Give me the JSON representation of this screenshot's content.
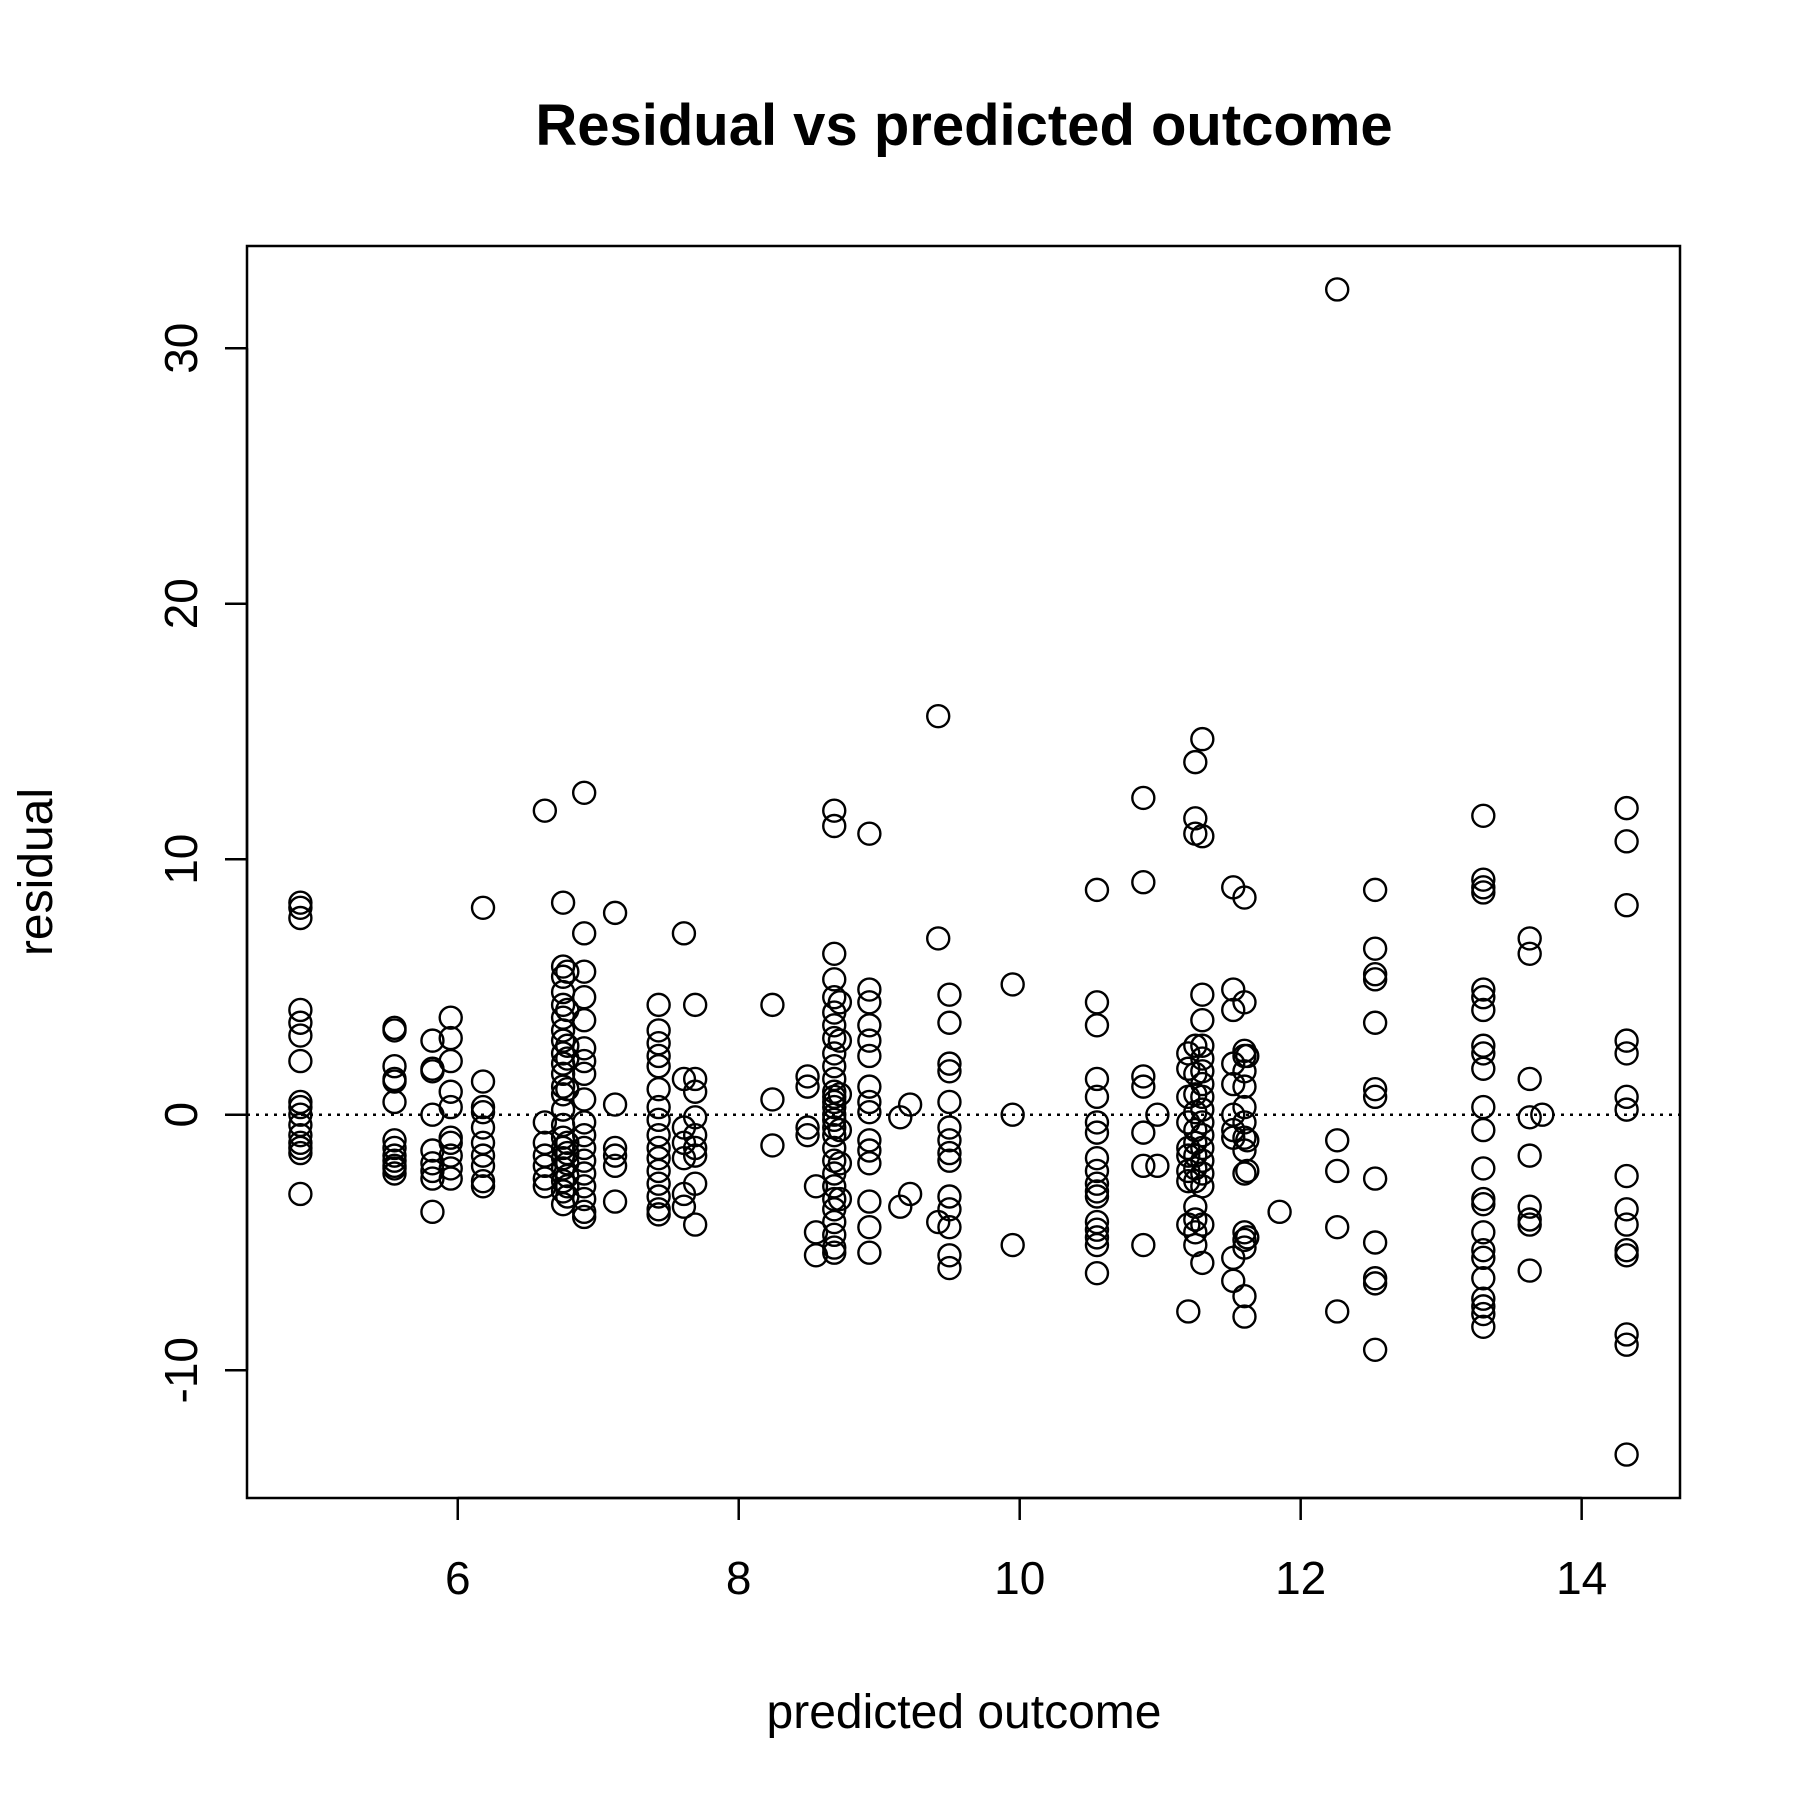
{
  "chart_data": {
    "type": "scatter",
    "title": "Residual vs predicted outcome",
    "xlabel": "predicted outcome",
    "ylabel": "residual",
    "xlim": [
      4.5,
      14.7
    ],
    "ylim": [
      -15,
      34
    ],
    "xticks": [
      6,
      8,
      10,
      12,
      14
    ],
    "xtick_labels": [
      "6",
      "8",
      "10",
      "12",
      "14"
    ],
    "yticks": [
      -10,
      0,
      10,
      20,
      30
    ],
    "ytick_labels": [
      "-10",
      "0",
      "10",
      "20",
      "30"
    ],
    "reference_line_y": 0,
    "grid": false,
    "marker": "open-circle",
    "points": [
      [
        4.88,
        8.3
      ],
      [
        4.88,
        8.1
      ],
      [
        4.88,
        7.7
      ],
      [
        4.88,
        4.1
      ],
      [
        4.88,
        3.6
      ],
      [
        4.88,
        3.1
      ],
      [
        4.88,
        2.1
      ],
      [
        4.88,
        0.5
      ],
      [
        4.88,
        0.3
      ],
      [
        4.88,
        0.0
      ],
      [
        4.88,
        -0.4
      ],
      [
        4.88,
        -0.8
      ],
      [
        4.88,
        -1.1
      ],
      [
        4.88,
        -1.3
      ],
      [
        4.88,
        -1.5
      ],
      [
        4.88,
        -3.1
      ],
      [
        5.55,
        3.4
      ],
      [
        5.55,
        3.3
      ],
      [
        5.55,
        1.9
      ],
      [
        5.55,
        1.4
      ],
      [
        5.55,
        1.3
      ],
      [
        5.55,
        0.5
      ],
      [
        5.55,
        -1.0
      ],
      [
        5.55,
        -1.3
      ],
      [
        5.55,
        -1.6
      ],
      [
        5.55,
        -1.8
      ],
      [
        5.55,
        -2.0
      ],
      [
        5.55,
        -2.1
      ],
      [
        5.55,
        -2.3
      ],
      [
        5.82,
        2.9
      ],
      [
        5.82,
        1.8
      ],
      [
        5.82,
        1.7
      ],
      [
        5.82,
        0.0
      ],
      [
        5.82,
        -1.4
      ],
      [
        5.82,
        -1.9
      ],
      [
        5.82,
        -2.2
      ],
      [
        5.82,
        -2.5
      ],
      [
        5.82,
        -3.8
      ],
      [
        5.95,
        3.8
      ],
      [
        5.95,
        3.0
      ],
      [
        5.95,
        2.1
      ],
      [
        5.95,
        0.9
      ],
      [
        5.95,
        0.3
      ],
      [
        5.95,
        -0.9
      ],
      [
        5.95,
        -1.1
      ],
      [
        5.95,
        -1.6
      ],
      [
        5.95,
        -2.1
      ],
      [
        5.95,
        -2.5
      ],
      [
        6.18,
        8.1
      ],
      [
        6.18,
        1.3
      ],
      [
        6.18,
        0.3
      ],
      [
        6.18,
        0.1
      ],
      [
        6.18,
        -0.5
      ],
      [
        6.18,
        -1.1
      ],
      [
        6.18,
        -1.6
      ],
      [
        6.18,
        -2.0
      ],
      [
        6.18,
        -2.6
      ],
      [
        6.18,
        -2.8
      ],
      [
        6.62,
        11.9
      ],
      [
        6.62,
        -0.3
      ],
      [
        6.62,
        -1.1
      ],
      [
        6.62,
        -1.6
      ],
      [
        6.62,
        -2.0
      ],
      [
        6.62,
        -2.5
      ],
      [
        6.62,
        -2.8
      ],
      [
        6.75,
        8.3
      ],
      [
        6.75,
        5.8
      ],
      [
        6.75,
        5.4
      ],
      [
        6.75,
        4.8
      ],
      [
        6.75,
        4.3
      ],
      [
        6.75,
        3.8
      ],
      [
        6.75,
        3.3
      ],
      [
        6.75,
        2.9
      ],
      [
        6.75,
        2.4
      ],
      [
        6.75,
        2.0
      ],
      [
        6.75,
        1.6
      ],
      [
        6.75,
        1.1
      ],
      [
        6.75,
        0.8
      ],
      [
        6.75,
        0.2
      ],
      [
        6.75,
        -0.4
      ],
      [
        6.75,
        -0.9
      ],
      [
        6.75,
        -1.3
      ],
      [
        6.75,
        -1.7
      ],
      [
        6.75,
        -2.1
      ],
      [
        6.75,
        -2.6
      ],
      [
        6.75,
        -3.0
      ],
      [
        6.75,
        -3.5
      ],
      [
        6.78,
        5.6
      ],
      [
        6.78,
        4.1
      ],
      [
        6.78,
        2.7
      ],
      [
        6.78,
        2.2
      ],
      [
        6.78,
        1.0
      ],
      [
        6.78,
        -1.1
      ],
      [
        6.78,
        -1.5
      ],
      [
        6.78,
        -1.9
      ],
      [
        6.78,
        -2.4
      ],
      [
        6.78,
        -2.8
      ],
      [
        6.78,
        -3.2
      ],
      [
        6.9,
        12.6
      ],
      [
        6.9,
        7.1
      ],
      [
        6.9,
        5.6
      ],
      [
        6.9,
        4.6
      ],
      [
        6.9,
        3.7
      ],
      [
        6.9,
        2.6
      ],
      [
        6.9,
        2.1
      ],
      [
        6.9,
        1.6
      ],
      [
        6.9,
        0.6
      ],
      [
        6.9,
        -0.3
      ],
      [
        6.9,
        -0.8
      ],
      [
        6.9,
        -1.3
      ],
      [
        6.9,
        -1.8
      ],
      [
        6.9,
        -2.3
      ],
      [
        6.9,
        -2.8
      ],
      [
        6.9,
        -3.3
      ],
      [
        6.9,
        -3.8
      ],
      [
        6.9,
        -4.0
      ],
      [
        7.12,
        7.9
      ],
      [
        7.12,
        0.4
      ],
      [
        7.12,
        -1.3
      ],
      [
        7.12,
        -1.6
      ],
      [
        7.12,
        -2.0
      ],
      [
        7.12,
        -3.4
      ],
      [
        7.43,
        4.3
      ],
      [
        7.43,
        3.3
      ],
      [
        7.43,
        2.8
      ],
      [
        7.43,
        2.3
      ],
      [
        7.43,
        1.9
      ],
      [
        7.43,
        1.0
      ],
      [
        7.43,
        0.3
      ],
      [
        7.43,
        -0.2
      ],
      [
        7.43,
        -0.8
      ],
      [
        7.43,
        -1.3
      ],
      [
        7.43,
        -1.7
      ],
      [
        7.43,
        -2.2
      ],
      [
        7.43,
        -2.7
      ],
      [
        7.43,
        -3.2
      ],
      [
        7.43,
        -3.7
      ],
      [
        7.43,
        -3.9
      ],
      [
        7.61,
        7.1
      ],
      [
        7.61,
        1.4
      ],
      [
        7.61,
        -0.5
      ],
      [
        7.61,
        -1.1
      ],
      [
        7.61,
        -1.7
      ],
      [
        7.61,
        -3.1
      ],
      [
        7.61,
        -3.6
      ],
      [
        7.69,
        4.3
      ],
      [
        7.69,
        1.4
      ],
      [
        7.69,
        0.9
      ],
      [
        7.69,
        -0.1
      ],
      [
        7.69,
        -0.8
      ],
      [
        7.69,
        -1.3
      ],
      [
        7.69,
        -1.6
      ],
      [
        7.69,
        -2.7
      ],
      [
        7.69,
        -4.3
      ],
      [
        8.24,
        4.3
      ],
      [
        8.24,
        0.6
      ],
      [
        8.24,
        -1.2
      ],
      [
        8.49,
        1.5
      ],
      [
        8.49,
        1.1
      ],
      [
        8.49,
        -0.5
      ],
      [
        8.49,
        -0.8
      ],
      [
        8.55,
        -2.8
      ],
      [
        8.55,
        -4.6
      ],
      [
        8.55,
        -5.5
      ],
      [
        8.68,
        11.9
      ],
      [
        8.68,
        11.3
      ],
      [
        8.68,
        6.3
      ],
      [
        8.68,
        5.3
      ],
      [
        8.68,
        4.6
      ],
      [
        8.68,
        4.0
      ],
      [
        8.68,
        3.5
      ],
      [
        8.68,
        3.0
      ],
      [
        8.68,
        2.4
      ],
      [
        8.68,
        1.9
      ],
      [
        8.68,
        1.4
      ],
      [
        8.68,
        0.9
      ],
      [
        8.68,
        0.7
      ],
      [
        8.68,
        0.5
      ],
      [
        8.68,
        0.3
      ],
      [
        8.68,
        0.0
      ],
      [
        8.68,
        -0.2
      ],
      [
        8.68,
        -0.5
      ],
      [
        8.68,
        -0.8
      ],
      [
        8.68,
        -1.3
      ],
      [
        8.68,
        -1.8
      ],
      [
        8.68,
        -2.3
      ],
      [
        8.68,
        -2.8
      ],
      [
        8.68,
        -3.3
      ],
      [
        8.68,
        -3.7
      ],
      [
        8.68,
        -4.2
      ],
      [
        8.68,
        -4.7
      ],
      [
        8.68,
        -5.2
      ],
      [
        8.68,
        -5.4
      ],
      [
        8.72,
        4.4
      ],
      [
        8.72,
        2.9
      ],
      [
        8.72,
        0.8
      ],
      [
        8.72,
        -0.6
      ],
      [
        8.72,
        -1.9
      ],
      [
        8.72,
        -3.3
      ],
      [
        8.93,
        11.0
      ],
      [
        8.93,
        4.9
      ],
      [
        8.93,
        4.4
      ],
      [
        8.93,
        3.5
      ],
      [
        8.93,
        2.9
      ],
      [
        8.93,
        2.3
      ],
      [
        8.93,
        1.1
      ],
      [
        8.93,
        0.5
      ],
      [
        8.93,
        0.1
      ],
      [
        8.93,
        -1.0
      ],
      [
        8.93,
        -1.4
      ],
      [
        8.93,
        -1.9
      ],
      [
        8.93,
        -3.4
      ],
      [
        8.93,
        -4.4
      ],
      [
        8.93,
        -5.4
      ],
      [
        9.15,
        -0.1
      ],
      [
        9.15,
        -3.6
      ],
      [
        9.22,
        0.4
      ],
      [
        9.22,
        -3.1
      ],
      [
        9.42,
        15.6
      ],
      [
        9.42,
        6.9
      ],
      [
        9.42,
        -4.2
      ],
      [
        9.5,
        4.7
      ],
      [
        9.5,
        3.6
      ],
      [
        9.5,
        2.0
      ],
      [
        9.5,
        1.7
      ],
      [
        9.5,
        0.5
      ],
      [
        9.5,
        -0.5
      ],
      [
        9.5,
        -1.0
      ],
      [
        9.5,
        -1.5
      ],
      [
        9.5,
        -1.8
      ],
      [
        9.5,
        -3.2
      ],
      [
        9.5,
        -3.7
      ],
      [
        9.5,
        -4.4
      ],
      [
        9.5,
        -5.5
      ],
      [
        9.5,
        -6.0
      ],
      [
        9.95,
        5.1
      ],
      [
        9.95,
        0.0
      ],
      [
        9.95,
        -5.1
      ],
      [
        10.55,
        8.8
      ],
      [
        10.55,
        4.4
      ],
      [
        10.55,
        3.5
      ],
      [
        10.55,
        1.4
      ],
      [
        10.55,
        0.7
      ],
      [
        10.55,
        -0.3
      ],
      [
        10.55,
        -0.7
      ],
      [
        10.55,
        -1.7
      ],
      [
        10.55,
        -2.2
      ],
      [
        10.55,
        -2.7
      ],
      [
        10.55,
        -3.0
      ],
      [
        10.55,
        -3.2
      ],
      [
        10.55,
        -4.2
      ],
      [
        10.55,
        -4.5
      ],
      [
        10.55,
        -4.8
      ],
      [
        10.55,
        -5.1
      ],
      [
        10.55,
        -6.2
      ],
      [
        10.88,
        12.4
      ],
      [
        10.88,
        9.1
      ],
      [
        10.88,
        1.5
      ],
      [
        10.88,
        1.1
      ],
      [
        10.88,
        -0.7
      ],
      [
        10.88,
        -2.0
      ],
      [
        10.88,
        -5.1
      ],
      [
        10.98,
        0.0
      ],
      [
        10.98,
        -2.0
      ],
      [
        11.2,
        2.4
      ],
      [
        11.2,
        1.8
      ],
      [
        11.2,
        0.7
      ],
      [
        11.2,
        -0.3
      ],
      [
        11.2,
        -1.3
      ],
      [
        11.2,
        -1.6
      ],
      [
        11.2,
        -2.2
      ],
      [
        11.2,
        -2.6
      ],
      [
        11.2,
        -4.3
      ],
      [
        11.2,
        -7.7
      ],
      [
        11.25,
        13.8
      ],
      [
        11.25,
        11.6
      ],
      [
        11.25,
        11.0
      ],
      [
        11.25,
        2.7
      ],
      [
        11.25,
        1.6
      ],
      [
        11.25,
        0.8
      ],
      [
        11.25,
        0.1
      ],
      [
        11.25,
        -0.6
      ],
      [
        11.25,
        -1.1
      ],
      [
        11.25,
        -1.6
      ],
      [
        11.25,
        -2.1
      ],
      [
        11.25,
        -2.6
      ],
      [
        11.25,
        -3.6
      ],
      [
        11.25,
        -4.1
      ],
      [
        11.25,
        -4.6
      ],
      [
        11.25,
        -5.1
      ],
      [
        11.3,
        14.7
      ],
      [
        11.3,
        10.9
      ],
      [
        11.3,
        4.7
      ],
      [
        11.3,
        3.7
      ],
      [
        11.3,
        2.7
      ],
      [
        11.3,
        2.2
      ],
      [
        11.3,
        1.7
      ],
      [
        11.3,
        1.2
      ],
      [
        11.3,
        0.7
      ],
      [
        11.3,
        0.2
      ],
      [
        11.3,
        -0.3
      ],
      [
        11.3,
        -0.8
      ],
      [
        11.3,
        -1.3
      ],
      [
        11.3,
        -1.8
      ],
      [
        11.3,
        -2.3
      ],
      [
        11.3,
        -2.8
      ],
      [
        11.3,
        -4.3
      ],
      [
        11.3,
        -5.8
      ],
      [
        11.52,
        8.9
      ],
      [
        11.52,
        4.9
      ],
      [
        11.52,
        4.1
      ],
      [
        11.52,
        2.0
      ],
      [
        11.52,
        1.2
      ],
      [
        11.52,
        0.0
      ],
      [
        11.52,
        -0.6
      ],
      [
        11.52,
        -0.9
      ],
      [
        11.52,
        -5.6
      ],
      [
        11.52,
        -6.5
      ],
      [
        11.6,
        8.5
      ],
      [
        11.6,
        4.4
      ],
      [
        11.6,
        2.5
      ],
      [
        11.6,
        2.3
      ],
      [
        11.6,
        1.7
      ],
      [
        11.6,
        1.1
      ],
      [
        11.6,
        0.3
      ],
      [
        11.6,
        -0.3
      ],
      [
        11.6,
        -0.9
      ],
      [
        11.6,
        -1.4
      ],
      [
        11.6,
        -2.3
      ],
      [
        11.6,
        -4.6
      ],
      [
        11.6,
        -4.9
      ],
      [
        11.6,
        -5.2
      ],
      [
        11.6,
        -7.1
      ],
      [
        11.6,
        -7.9
      ],
      [
        11.62,
        2.3
      ],
      [
        11.62,
        -1.0
      ],
      [
        11.62,
        -2.2
      ],
      [
        11.62,
        -4.8
      ],
      [
        11.85,
        -3.8
      ],
      [
        12.26,
        32.3
      ],
      [
        12.26,
        -1.0
      ],
      [
        12.26,
        -2.2
      ],
      [
        12.26,
        -4.4
      ],
      [
        12.26,
        -7.7
      ],
      [
        12.53,
        8.8
      ],
      [
        12.53,
        6.5
      ],
      [
        12.53,
        5.5
      ],
      [
        12.53,
        5.3
      ],
      [
        12.53,
        3.6
      ],
      [
        12.53,
        1.0
      ],
      [
        12.53,
        0.7
      ],
      [
        12.53,
        -2.5
      ],
      [
        12.53,
        -5.0
      ],
      [
        12.53,
        -6.4
      ],
      [
        12.53,
        -6.6
      ],
      [
        12.53,
        -9.2
      ],
      [
        13.3,
        11.7
      ],
      [
        13.3,
        9.2
      ],
      [
        13.3,
        8.9
      ],
      [
        13.3,
        8.7
      ],
      [
        13.3,
        4.9
      ],
      [
        13.3,
        4.6
      ],
      [
        13.3,
        4.1
      ],
      [
        13.3,
        2.7
      ],
      [
        13.3,
        2.4
      ],
      [
        13.3,
        1.8
      ],
      [
        13.3,
        0.3
      ],
      [
        13.3,
        -0.6
      ],
      [
        13.3,
        -2.1
      ],
      [
        13.3,
        -3.3
      ],
      [
        13.3,
        -3.5
      ],
      [
        13.3,
        -4.6
      ],
      [
        13.3,
        -5.3
      ],
      [
        13.3,
        -5.6
      ],
      [
        13.3,
        -6.4
      ],
      [
        13.3,
        -7.2
      ],
      [
        13.3,
        -7.5
      ],
      [
        13.3,
        -7.8
      ],
      [
        13.3,
        -8.3
      ],
      [
        13.63,
        6.9
      ],
      [
        13.63,
        6.3
      ],
      [
        13.63,
        1.4
      ],
      [
        13.63,
        -0.1
      ],
      [
        13.63,
        -1.6
      ],
      [
        13.63,
        -3.6
      ],
      [
        13.63,
        -4.1
      ],
      [
        13.63,
        -4.3
      ],
      [
        13.63,
        -6.1
      ],
      [
        13.72,
        0.0
      ],
      [
        14.32,
        12.0
      ],
      [
        14.32,
        10.7
      ],
      [
        14.32,
        8.2
      ],
      [
        14.32,
        2.9
      ],
      [
        14.32,
        2.4
      ],
      [
        14.32,
        0.7
      ],
      [
        14.32,
        0.2
      ],
      [
        14.32,
        -2.4
      ],
      [
        14.32,
        -3.7
      ],
      [
        14.32,
        -4.3
      ],
      [
        14.32,
        -5.3
      ],
      [
        14.32,
        -5.5
      ],
      [
        14.32,
        -8.6
      ],
      [
        14.32,
        -9.0
      ],
      [
        14.32,
        -13.3
      ]
    ]
  }
}
